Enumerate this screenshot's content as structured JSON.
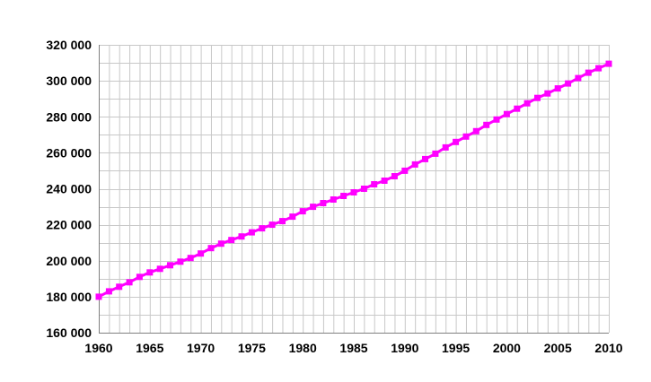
{
  "chart_data": {
    "type": "line",
    "title": "",
    "xlabel": "",
    "ylabel": "",
    "xlim": [
      1960,
      2010
    ],
    "ylim": [
      160000,
      320000
    ],
    "x_ticks": [
      1960,
      1965,
      1970,
      1975,
      1980,
      1985,
      1990,
      1995,
      2000,
      2005,
      2010
    ],
    "x_tick_labels": [
      "1960",
      "1965",
      "1970",
      "1975",
      "1980",
      "1985",
      "1990",
      "1995",
      "2000",
      "2005",
      "2010"
    ],
    "y_ticks": [
      160000,
      180000,
      200000,
      220000,
      240000,
      260000,
      280000,
      300000,
      320000
    ],
    "y_tick_labels": [
      "160 000",
      "180 000",
      "200 000",
      "220 000",
      "240 000",
      "260 000",
      "280 000",
      "300 000",
      "320 000"
    ],
    "grid": true,
    "legend": "none",
    "x": [
      1960,
      1961,
      1962,
      1963,
      1964,
      1965,
      1966,
      1967,
      1968,
      1969,
      1970,
      1971,
      1972,
      1973,
      1974,
      1975,
      1976,
      1977,
      1978,
      1979,
      1980,
      1981,
      1982,
      1983,
      1984,
      1985,
      1986,
      1987,
      1988,
      1989,
      1990,
      1991,
      1992,
      1993,
      1994,
      1995,
      1996,
      1997,
      1998,
      1999,
      2000,
      2001,
      2002,
      2003,
      2004,
      2005,
      2006,
      2007,
      2008,
      2009,
      2010
    ],
    "series": [
      {
        "name": "",
        "color": "#FF00FF",
        "marker": "square",
        "values": [
          180000,
          183000,
          185500,
          188000,
          191000,
          193500,
          195500,
          197500,
          199500,
          201500,
          204000,
          207000,
          209500,
          211500,
          213500,
          215800,
          218000,
          220000,
          222000,
          224500,
          227500,
          230000,
          232000,
          234000,
          236000,
          238000,
          240000,
          242500,
          244500,
          247000,
          250000,
          253500,
          256500,
          259500,
          263000,
          266000,
          269000,
          272000,
          275500,
          278500,
          281500,
          284500,
          287500,
          290500,
          293000,
          295800,
          298500,
          301500,
          304500,
          307000,
          309500
        ]
      }
    ],
    "colors": {
      "background": "#FFFFFF",
      "grid": "#C8C8C8",
      "axis": "#808080",
      "text": "#000000"
    }
  }
}
